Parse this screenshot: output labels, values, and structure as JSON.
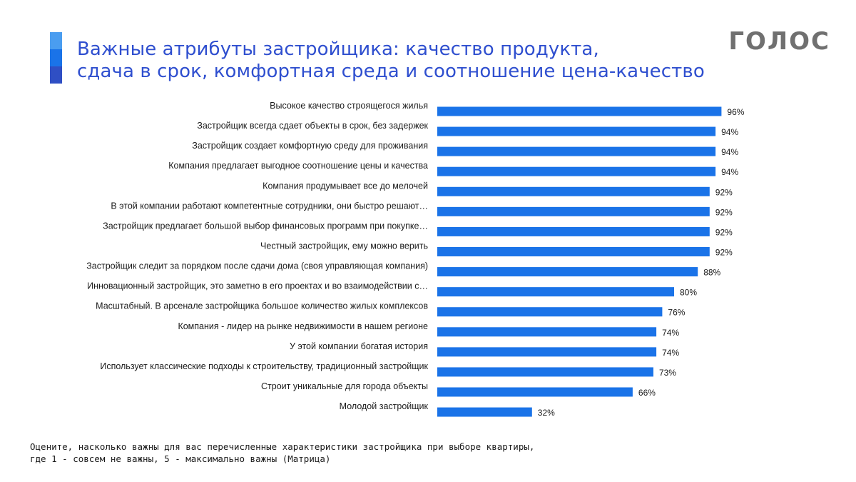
{
  "header": {
    "title_line1": "Важные атрибуты застройщика: качество продукта,",
    "title_line2": "сдача в срок, комфортная среда и соотношение цена-качество"
  },
  "brand": {
    "logo_text": "ГОЛОС"
  },
  "footnote": {
    "line1": "Оцените, насколько важны для вас перечисленные характеристики застройщика при выборе квартиры,",
    "line2": "где 1 - совсем не важны, 5 - максимально важны (Матрица)"
  },
  "colors": {
    "bar": "#1a73e8",
    "title": "#2f4fcf",
    "accent": [
      "#4a9df0",
      "#1a73e8",
      "#2f4fc4"
    ],
    "logo": "#707070"
  },
  "chart_data": {
    "type": "bar",
    "orientation": "horizontal",
    "categories": [
      "Высокое качество строящегося жилья",
      "Застройщик всегда сдает объекты в срок, без задержек",
      "Застройщик создает комфортную среду для проживания",
      "Компания предлагает выгодное соотношение цены и качества",
      "Компания продумывает все до мелочей",
      "В этой компании работают компетентные сотрудники, они быстро решают…",
      "Застройщик предлагает большой выбор финансовых программ при покупке…",
      "Честный застройщик, ему можно верить",
      "Застройщик следит за порядком после сдачи дома (своя управляющая компания)",
      "Инновационный застройщик, это заметно в его проектах и во взаимодействии с…",
      "Масштабный. В арсенале застройщика большое количество жилых комплексов",
      "Компания - лидер на рынке недвижимости в нашем регионе",
      "У этой компании богатая история",
      "Использует классические подходы к строительству, традиционный застройщик",
      "Строит уникальные для города объекты",
      "Молодой застройщик"
    ],
    "values": [
      96,
      94,
      94,
      94,
      92,
      92,
      92,
      92,
      88,
      80,
      76,
      74,
      74,
      73,
      66,
      32
    ],
    "value_labels": [
      "96%",
      "94%",
      "94%",
      "94%",
      "92%",
      "92%",
      "92%",
      "92%",
      "88%",
      "80%",
      "76%",
      "74%",
      "74%",
      "73%",
      "66%",
      "32%"
    ],
    "xlim": [
      0,
      100
    ],
    "grid": false,
    "legend": "none"
  }
}
